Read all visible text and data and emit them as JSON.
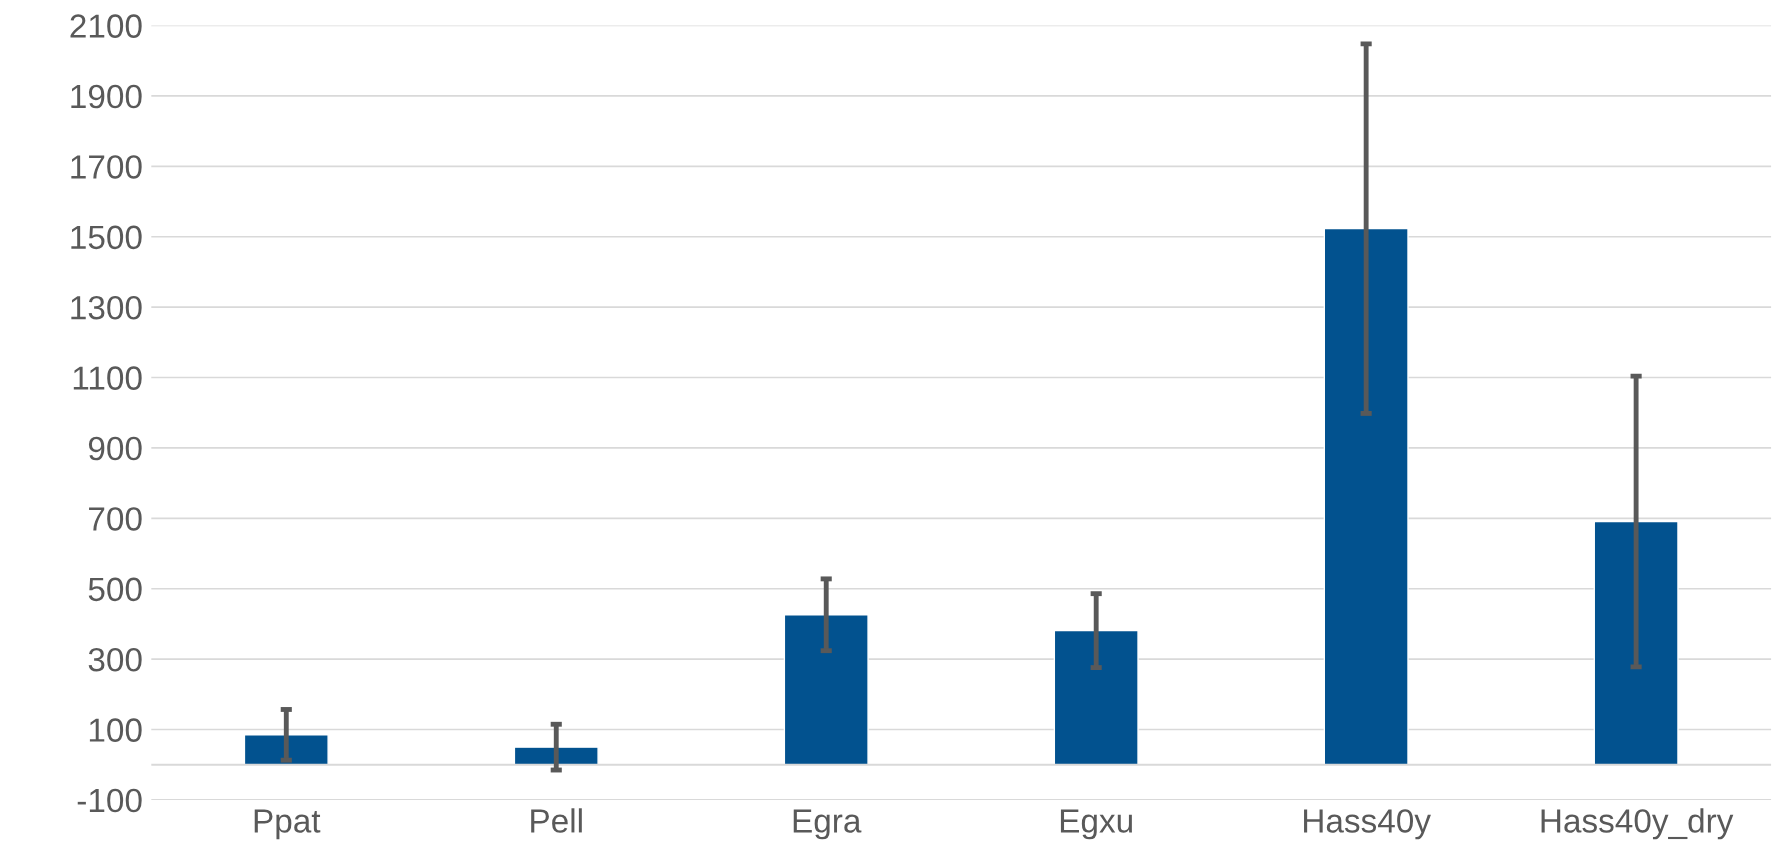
{
  "chart_data": {
    "type": "bar",
    "categories": [
      "Ppat",
      "Pell",
      "Egra",
      "Egxu",
      "Hass40y",
      "Hass40y_dry"
    ],
    "values": [
      85,
      50,
      426,
      381,
      1523,
      691
    ],
    "errors": [
      72,
      65,
      102,
      105,
      525,
      413
    ],
    "color": "#02528f",
    "ylim": [
      -100,
      2100
    ],
    "yticks": [
      -100,
      100,
      300,
      500,
      700,
      900,
      1100,
      1300,
      1500,
      1700,
      1900,
      2100
    ],
    "grid": "y",
    "ref_lines": [
      {
        "axis": "y",
        "value": 0,
        "color": "#d9d9d9"
      }
    ]
  }
}
